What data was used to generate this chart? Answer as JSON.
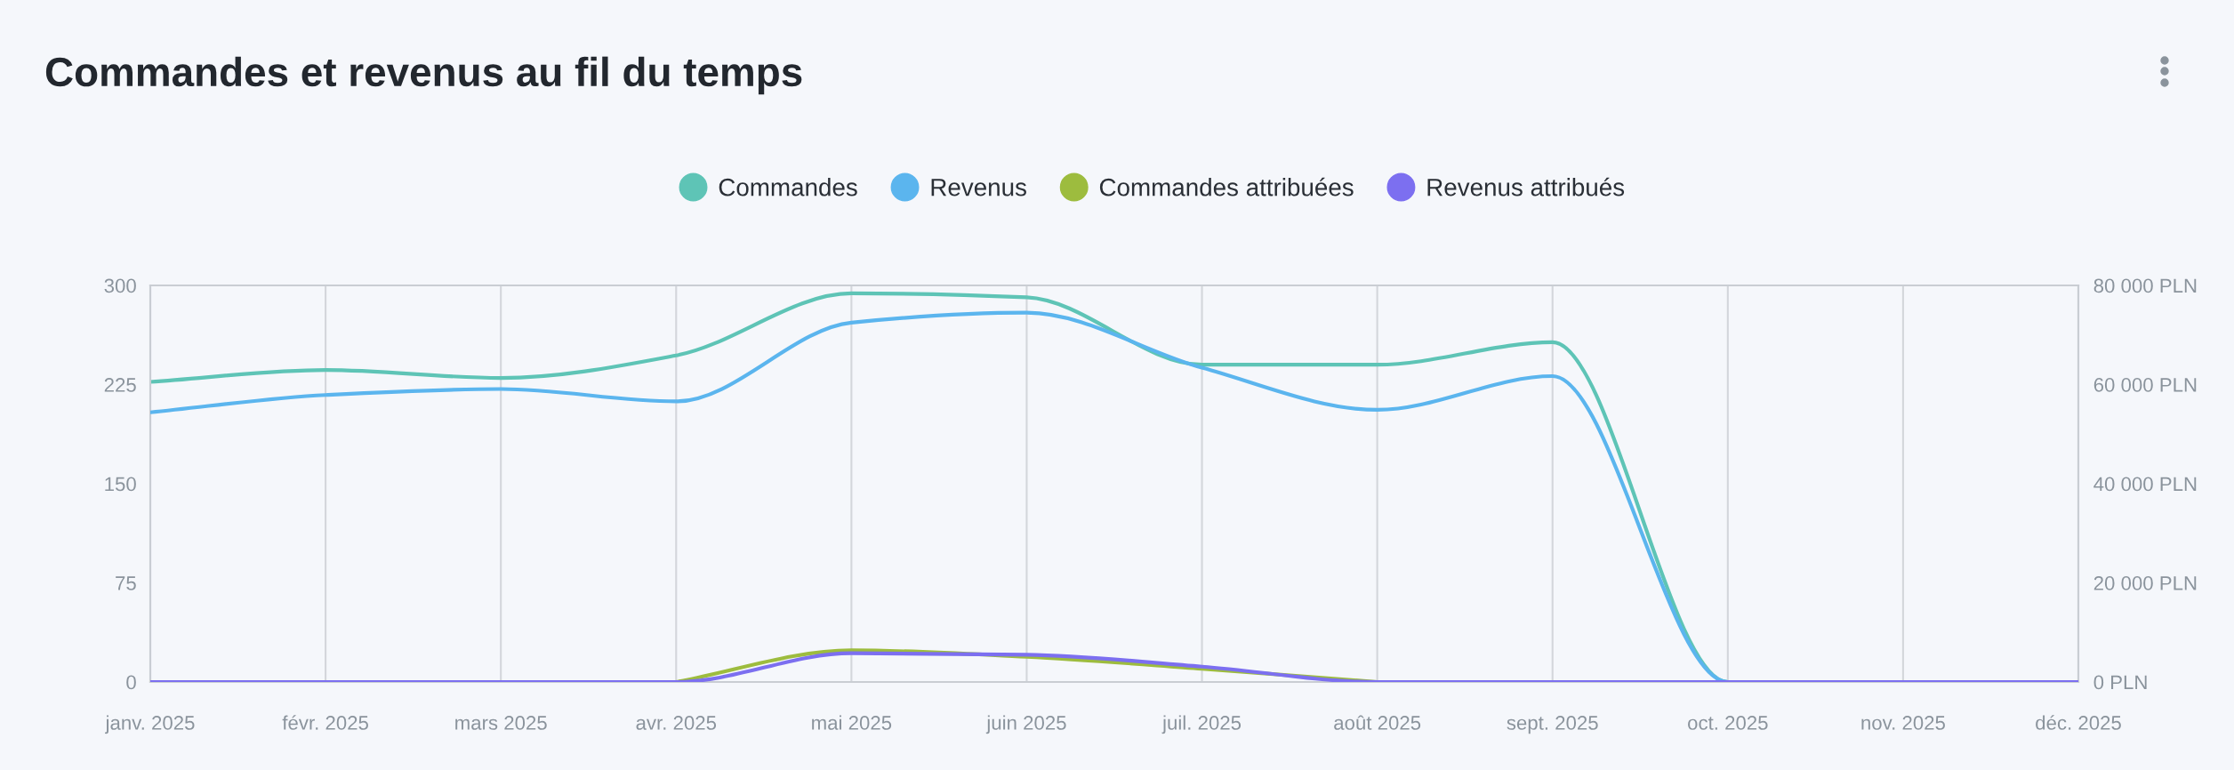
{
  "chart_data": {
    "type": "line",
    "title": "Commandes et revenus au fil du temps",
    "categories": [
      "janv. 2025",
      "févr. 2025",
      "mars 2025",
      "avr. 2025",
      "mai 2025",
      "juin 2025",
      "juil. 2025",
      "août 2025",
      "sept. 2025",
      "oct. 2025",
      "nov. 2025",
      "déc. 2025"
    ],
    "series": [
      {
        "name": "Commandes",
        "color": "#5ec4b6",
        "values": [
          227,
          236,
          230,
          247,
          294,
          291,
          240,
          240,
          257,
          0,
          0,
          0
        ]
      },
      {
        "name": "Revenus",
        "color": "#5bb5ee",
        "axis": "y2",
        "values": [
          54400,
          57900,
          59100,
          56600,
          72500,
          74500,
          63400,
          54900,
          61700,
          0,
          0,
          0
        ]
      },
      {
        "name": "Commandes attribuées",
        "color": "#9dbc3e",
        "values": [
          null,
          null,
          null,
          0,
          24,
          19,
          10,
          0,
          null,
          null,
          null,
          null
        ]
      },
      {
        "name": "Revenus attribués",
        "color": "#7c6ff0",
        "axis": "y2",
        "values": [
          0,
          0,
          0,
          0,
          5800,
          5500,
          3100,
          0,
          0,
          0,
          0,
          0
        ]
      }
    ],
    "ylim": [
      0,
      300
    ],
    "yticks": [
      0,
      75,
      150,
      225,
      300
    ],
    "y2lim": [
      0,
      80000
    ],
    "y2ticks": [
      {
        "value": 0,
        "label": "0 PLN"
      },
      {
        "value": 20000,
        "label": "20 000 PLN"
      },
      {
        "value": 40000,
        "label": "40 000 PLN"
      },
      {
        "value": 60000,
        "label": "60 000 PLN"
      },
      {
        "value": 80000,
        "label": "80 000 PLN"
      }
    ],
    "grid": "x",
    "legend": "top"
  }
}
